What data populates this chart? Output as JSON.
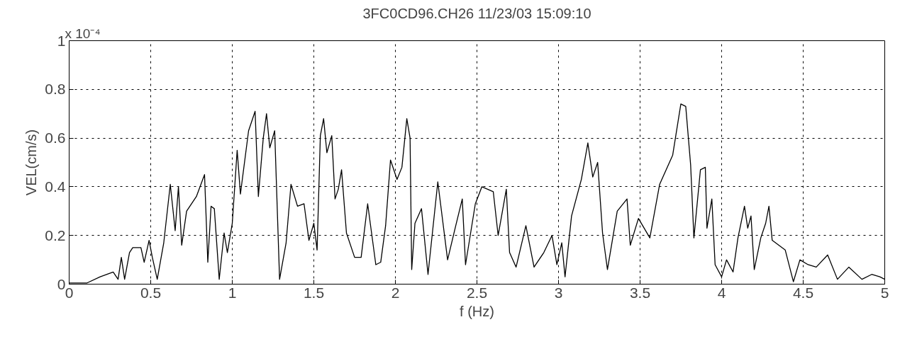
{
  "chart_data": {
    "type": "line",
    "title": "3FC0CD96.CH26 11/23/03 15:09:10",
    "xlabel": "f (Hz)",
    "ylabel": "VEL(cm/s)",
    "annotations": [
      "x 10⁻⁴"
    ],
    "xlim": [
      0,
      5
    ],
    "xticks": [
      0,
      0.5,
      1,
      1.5,
      2,
      2.5,
      3,
      3.5,
      4,
      4.5,
      5
    ],
    "ylim": [
      0,
      1
    ],
    "yticks": [
      0,
      0.2,
      0.4,
      0.6,
      0.8,
      1
    ],
    "grid": true,
    "marker": "none",
    "line_style": "solid",
    "x": [
      0,
      0.11,
      0.19,
      0.27,
      0.3,
      0.32,
      0.34,
      0.37,
      0.39,
      0.44,
      0.46,
      0.49,
      0.51,
      0.54,
      0.58,
      0.62,
      0.65,
      0.67,
      0.69,
      0.72,
      0.78,
      0.83,
      0.85,
      0.87,
      0.89,
      0.92,
      0.95,
      0.97,
      1.0,
      1.03,
      1.05,
      1.1,
      1.14,
      1.16,
      1.19,
      1.21,
      1.23,
      1.26,
      1.29,
      1.33,
      1.36,
      1.4,
      1.44,
      1.47,
      1.5,
      1.52,
      1.54,
      1.56,
      1.58,
      1.61,
      1.63,
      1.65,
      1.67,
      1.7,
      1.75,
      1.79,
      1.83,
      1.88,
      1.91,
      1.94,
      1.97,
      2.01,
      2.04,
      2.07,
      2.09,
      2.1,
      2.12,
      2.16,
      2.2,
      2.26,
      2.32,
      2.37,
      2.41,
      2.43,
      2.49,
      2.53,
      2.6,
      2.63,
      2.68,
      2.7,
      2.74,
      2.8,
      2.85,
      2.91,
      2.96,
      2.99,
      3.02,
      3.04,
      3.08,
      3.14,
      3.18,
      3.21,
      3.24,
      3.27,
      3.3,
      3.36,
      3.42,
      3.44,
      3.49,
      3.56,
      3.62,
      3.7,
      3.75,
      3.78,
      3.81,
      3.83,
      3.87,
      3.9,
      3.91,
      3.94,
      3.96,
      4.0,
      4.03,
      4.07,
      4.1,
      4.14,
      4.16,
      4.18,
      4.2,
      4.24,
      4.27,
      4.29,
      4.31,
      4.39,
      4.44,
      4.48,
      4.53,
      4.58,
      4.65,
      4.71,
      4.78,
      4.86,
      4.92,
      4.97,
      5.0
    ],
    "series": [
      {
        "color": "#000000",
        "values": [
          0.005,
          0.005,
          0.03,
          0.05,
          0.02,
          0.11,
          0.02,
          0.13,
          0.15,
          0.15,
          0.09,
          0.18,
          0.11,
          0.02,
          0.17,
          0.41,
          0.22,
          0.4,
          0.16,
          0.3,
          0.36,
          0.45,
          0.09,
          0.32,
          0.31,
          0.02,
          0.21,
          0.13,
          0.25,
          0.55,
          0.37,
          0.63,
          0.71,
          0.36,
          0.6,
          0.7,
          0.56,
          0.63,
          0.02,
          0.17,
          0.41,
          0.32,
          0.33,
          0.18,
          0.25,
          0.14,
          0.61,
          0.68,
          0.54,
          0.61,
          0.35,
          0.39,
          0.47,
          0.21,
          0.11,
          0.11,
          0.33,
          0.08,
          0.09,
          0.24,
          0.51,
          0.43,
          0.48,
          0.68,
          0.6,
          0.06,
          0.25,
          0.31,
          0.04,
          0.42,
          0.1,
          0.24,
          0.35,
          0.08,
          0.33,
          0.4,
          0.38,
          0.2,
          0.39,
          0.13,
          0.07,
          0.24,
          0.07,
          0.13,
          0.2,
          0.08,
          0.17,
          0.03,
          0.28,
          0.43,
          0.58,
          0.44,
          0.5,
          0.21,
          0.06,
          0.3,
          0.35,
          0.16,
          0.27,
          0.19,
          0.41,
          0.53,
          0.74,
          0.73,
          0.49,
          0.19,
          0.47,
          0.48,
          0.23,
          0.35,
          0.08,
          0.03,
          0.1,
          0.05,
          0.19,
          0.32,
          0.23,
          0.28,
          0.06,
          0.19,
          0.25,
          0.32,
          0.18,
          0.14,
          0.01,
          0.1,
          0.08,
          0.07,
          0.12,
          0.02,
          0.07,
          0.02,
          0.04,
          0.03,
          0.02
        ]
      }
    ]
  }
}
